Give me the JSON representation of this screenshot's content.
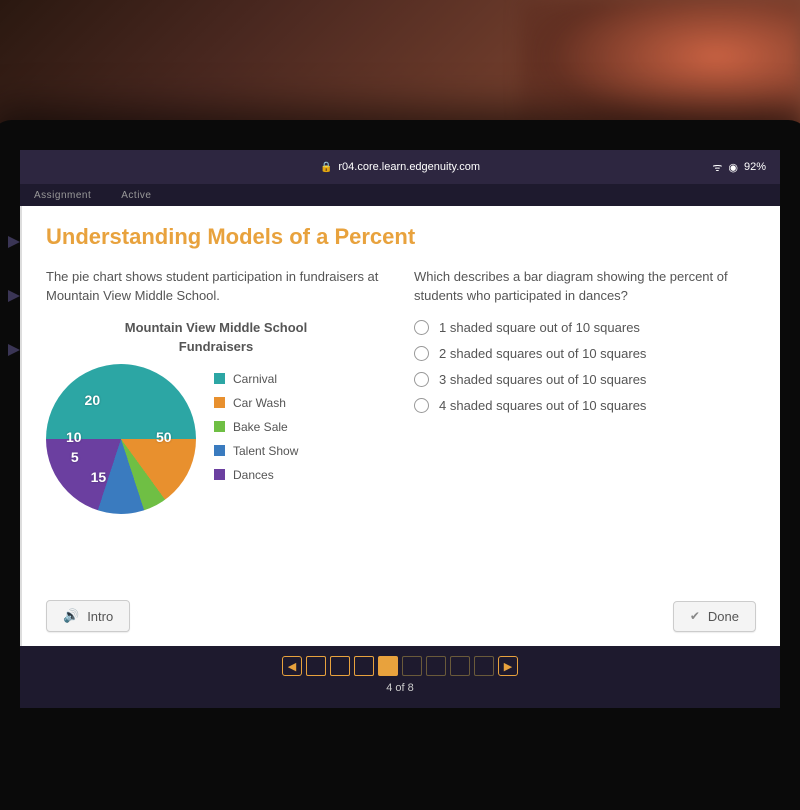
{
  "browser": {
    "url": "r04.core.learn.edgenuity.com",
    "battery": "92%"
  },
  "tabs": {
    "left": "Assignment",
    "right": "Active"
  },
  "lesson": {
    "title": "Understanding Models of a Percent"
  },
  "left_panel": {
    "prompt": "The pie chart shows student participation in fundraisers at Mountain View Middle School.",
    "chart": {
      "type": "pie",
      "title_line1": "Mountain View Middle School",
      "title_line2": "Fundraisers",
      "background_color": "#ffffff",
      "slices": [
        {
          "label": "Carnival",
          "value": 50,
          "color": "#2ca6a4"
        },
        {
          "label": "Car Wash",
          "value": 15,
          "color": "#e8902e"
        },
        {
          "label": "Bake Sale",
          "value": 5,
          "color": "#6fbf44"
        },
        {
          "label": "Talent Show",
          "value": 10,
          "color": "#3a7bbf"
        },
        {
          "label": "Dances",
          "value": 20,
          "color": "#6b3fa0"
        }
      ],
      "label_color": "#ffffff",
      "label_fontsize": 14,
      "legend_fontsize": 12,
      "legend_text_color": "#555555"
    }
  },
  "right_panel": {
    "question": "Which describes a bar diagram showing the percent of students who participated in dances?",
    "options": [
      "1 shaded square out of 10 squares",
      "2 shaded squares out of 10 squares",
      "3 shaded squares out of 10 squares",
      "4 shaded squares out of 10 squares"
    ]
  },
  "buttons": {
    "intro": "Intro",
    "done": "Done"
  },
  "pager": {
    "current": 4,
    "total": 8,
    "label": "4 of 8",
    "accent_color": "#e8a23d"
  }
}
